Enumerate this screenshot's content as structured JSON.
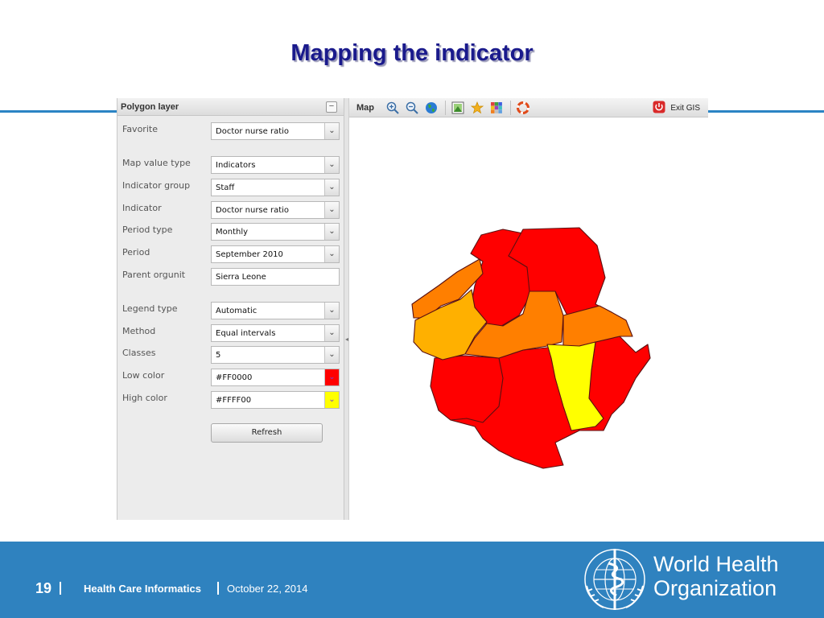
{
  "slide": {
    "title": "Mapping the indicator"
  },
  "panel": {
    "header": "Polygon layer",
    "fields": [
      {
        "label": "Favorite",
        "value": "Doctor nurse ratio",
        "type": "select"
      },
      {
        "label": "Map value type",
        "value": "Indicators",
        "type": "select"
      },
      {
        "label": "Indicator group",
        "value": "Staff",
        "type": "select"
      },
      {
        "label": "Indicator",
        "value": "Doctor nurse ratio",
        "type": "select"
      },
      {
        "label": "Period type",
        "value": "Monthly",
        "type": "select"
      },
      {
        "label": "Period",
        "value": "September 2010",
        "type": "select"
      },
      {
        "label": "Parent orgunit",
        "value": "Sierra Leone",
        "type": "text"
      },
      {
        "label": "Legend type",
        "value": "Automatic",
        "type": "select"
      },
      {
        "label": "Method",
        "value": "Equal intervals",
        "type": "select"
      },
      {
        "label": "Classes",
        "value": "5",
        "type": "select"
      },
      {
        "label": "Low color",
        "value": "#FF0000",
        "type": "color"
      },
      {
        "label": "High color",
        "value": "#FFFF00",
        "type": "color"
      }
    ],
    "refresh_label": "Refresh"
  },
  "toolbar": {
    "title": "Map",
    "exit_label": "Exit GIS",
    "icons": [
      "zoom-in-icon",
      "zoom-out-icon",
      "globe-icon",
      "layer-image-icon",
      "favorite-star-icon",
      "legend-grid-icon",
      "help-lifebuoy-icon"
    ]
  },
  "map": {
    "regions": [
      {
        "name": "north-west",
        "color": "#ff0000"
      },
      {
        "name": "north-east",
        "color": "#ff0000"
      },
      {
        "name": "west-coast-north",
        "color": "#ff7f00"
      },
      {
        "name": "west-coast",
        "color": "#ffb000"
      },
      {
        "name": "central",
        "color": "#ff7f00"
      },
      {
        "name": "east-central",
        "color": "#ff7f00"
      },
      {
        "name": "south-east-yellow",
        "color": "#ffff00"
      },
      {
        "name": "south-west",
        "color": "#ff0000"
      },
      {
        "name": "south",
        "color": "#ff0000"
      },
      {
        "name": "east",
        "color": "#ff0000"
      }
    ]
  },
  "footer": {
    "page_number": "19",
    "course": "Health Care Informatics",
    "date": "October 22, 2014",
    "org_line1": "World Health",
    "org_line2": "Organization"
  },
  "colors": {
    "title": "#1a1a8c",
    "footer_bg": "#2f82bf",
    "low": "#FF0000",
    "high": "#FFFF00"
  }
}
